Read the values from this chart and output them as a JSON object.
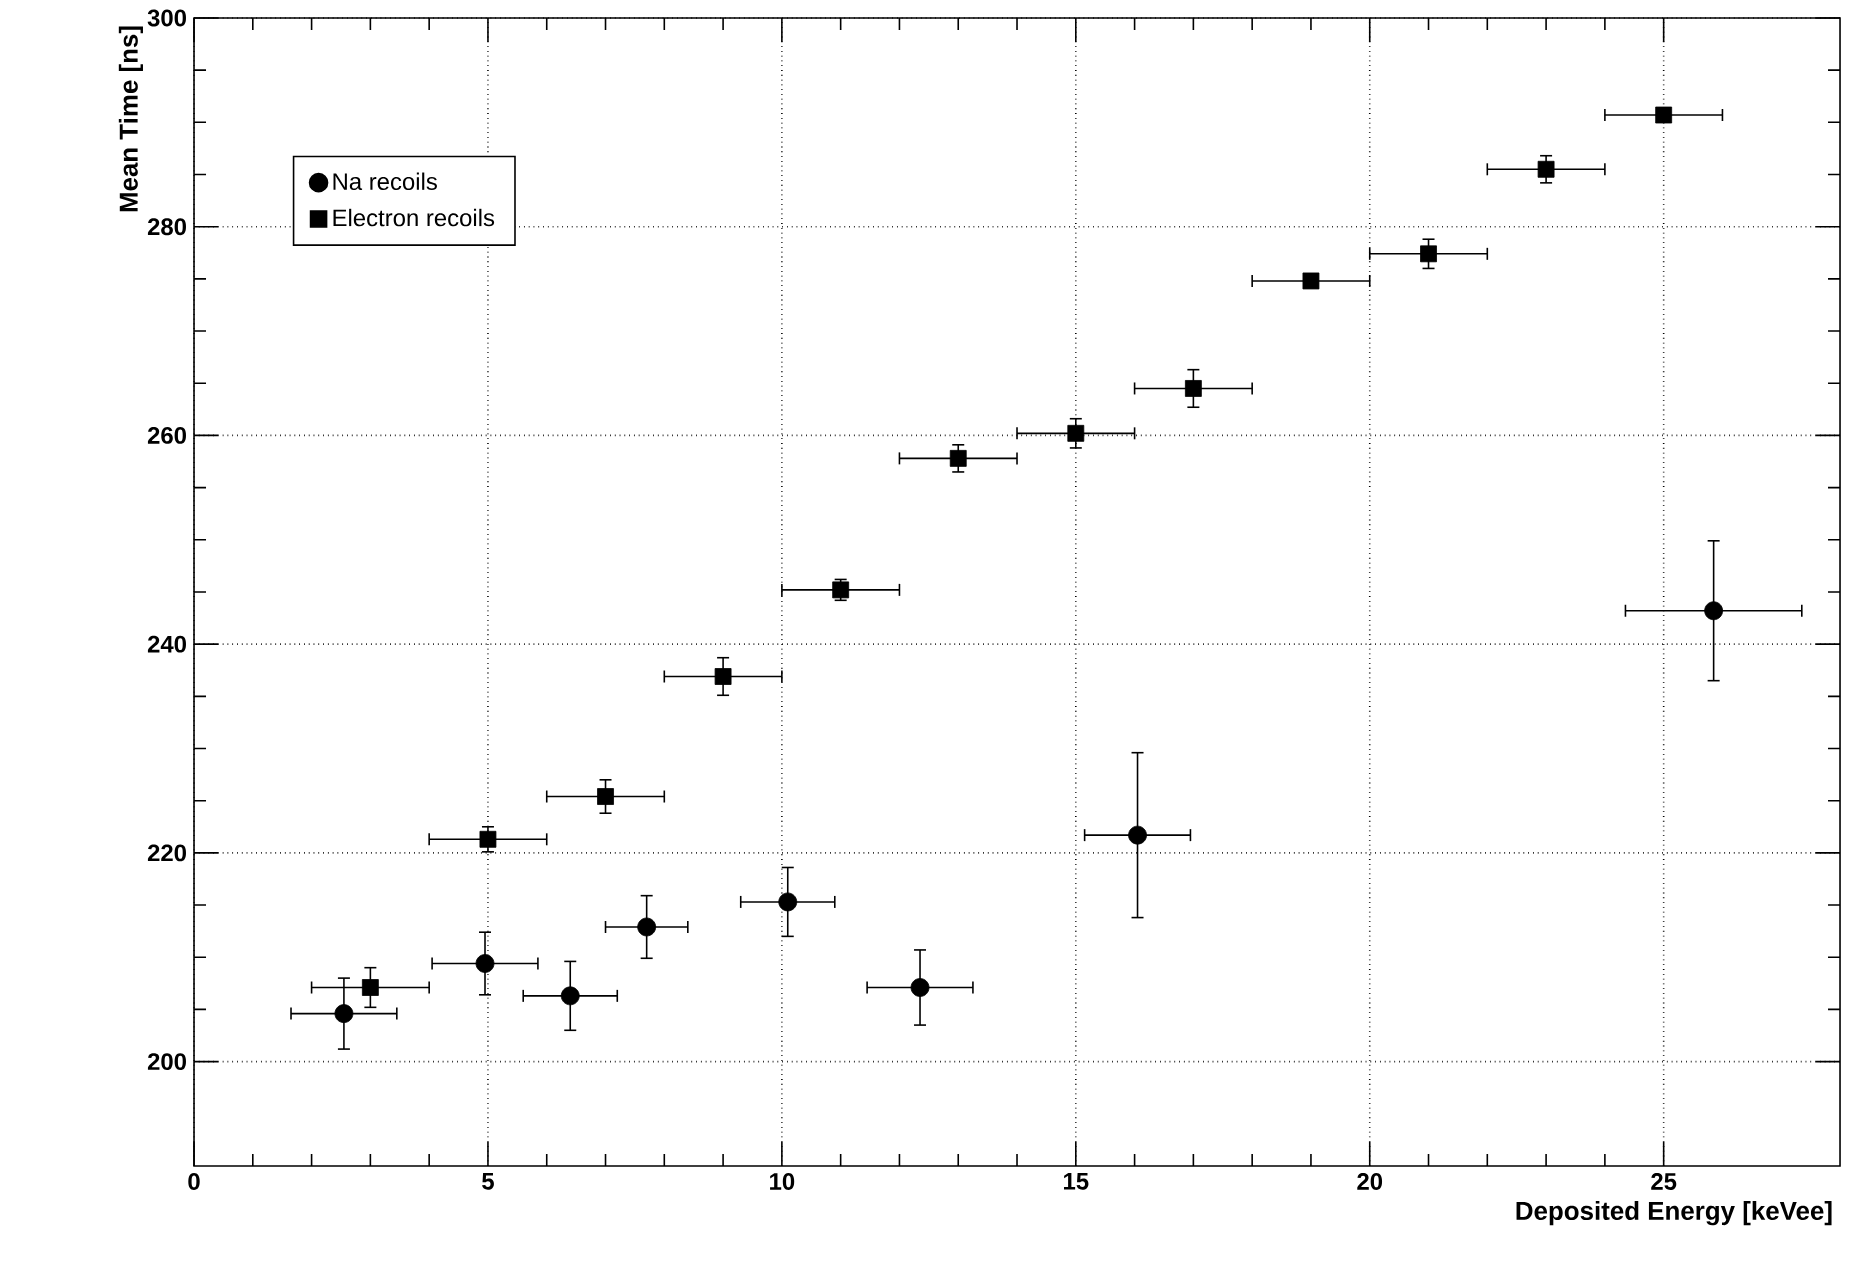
{
  "chart_data": {
    "type": "scatter",
    "xlabel": "Deposited Energy [keVee]",
    "ylabel": "Mean Time [ns]",
    "xlim": [
      0,
      28
    ],
    "ylim": [
      190,
      300
    ],
    "xticks": [
      0,
      5,
      10,
      15,
      20,
      25
    ],
    "yticks": [
      200,
      220,
      240,
      260,
      280,
      300
    ],
    "grid": true,
    "legend": "top left",
    "series": [
      {
        "name": "Na recoils",
        "color": "#000000",
        "marker": "circle",
        "x": [
          2.55,
          4.95,
          6.4,
          7.7,
          10.1,
          12.35,
          16.05,
          25.85
        ],
        "values": [
          204.6,
          209.4,
          206.3,
          212.9,
          215.3,
          207.1,
          221.7,
          243.2
        ],
        "errors": [
          3.4,
          3.0,
          3.3,
          3.0,
          3.3,
          3.6,
          7.9,
          6.7
        ],
        "xerrors": [
          0.9,
          0.9,
          0.8,
          0.7,
          0.8,
          0.9,
          0.9,
          1.5
        ]
      },
      {
        "name": "Electron recoils",
        "color": "#000000",
        "marker": "square",
        "x": [
          3,
          5,
          7,
          9,
          11,
          13,
          15,
          17,
          19,
          21,
          23,
          25
        ],
        "values": [
          207.1,
          221.3,
          225.4,
          236.9,
          245.2,
          257.8,
          260.2,
          264.5,
          274.8,
          277.4,
          285.5,
          290.7
        ],
        "errors": [
          1.9,
          1.2,
          1.6,
          1.8,
          1.0,
          1.3,
          1.4,
          1.8,
          0.6,
          1.4,
          1.3,
          0.5
        ],
        "xerrors": [
          1,
          1,
          1,
          1,
          1,
          1,
          1,
          1,
          1,
          1,
          1,
          1
        ]
      }
    ]
  }
}
